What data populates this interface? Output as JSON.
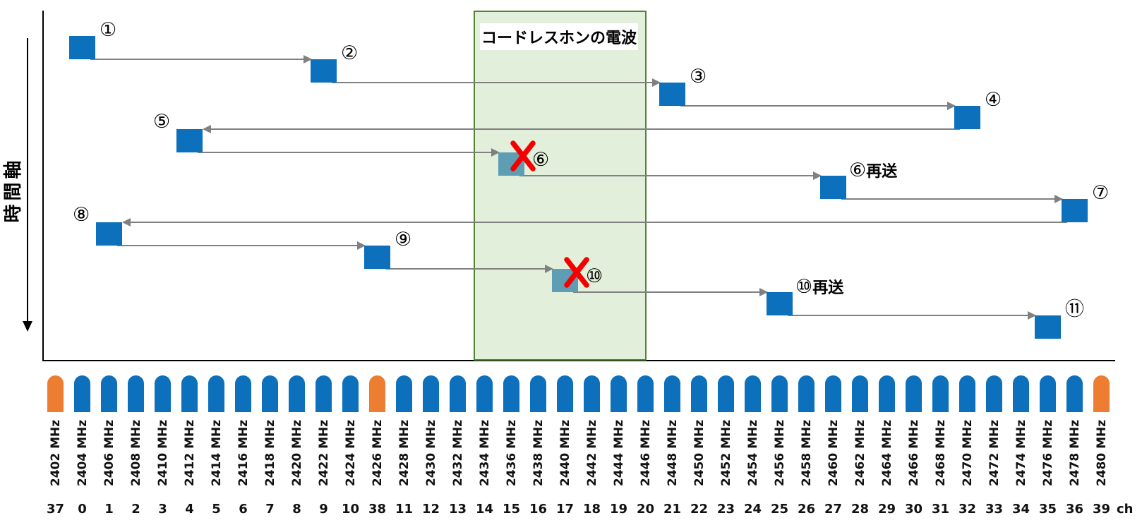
{
  "time_axis": {
    "label": "時間軸"
  },
  "interference_zone": {
    "label": "コードレスホンの電波"
  },
  "hops": [
    {
      "id": "1",
      "label": "①",
      "freq_mhz": 2404,
      "status": "ok",
      "label_side": "top-right"
    },
    {
      "id": "2",
      "label": "②",
      "freq_mhz": 2422,
      "status": "ok",
      "label_side": "top-right"
    },
    {
      "id": "3",
      "label": "③",
      "freq_mhz": 2448,
      "status": "ok",
      "label_side": "top-right"
    },
    {
      "id": "4",
      "label": "④",
      "freq_mhz": 2470,
      "status": "ok",
      "label_side": "top-right"
    },
    {
      "id": "5",
      "label": "⑤",
      "freq_mhz": 2412,
      "status": "ok",
      "label_side": "top-left"
    },
    {
      "id": "6",
      "label": "⑥",
      "freq_mhz": 2436,
      "status": "blocked",
      "label_side": "right"
    },
    {
      "id": "6-resend",
      "label": "⑥再送",
      "freq_mhz": 2460,
      "status": "resend",
      "label_side": "top-right"
    },
    {
      "id": "7",
      "label": "⑦",
      "freq_mhz": 2478,
      "status": "ok",
      "label_side": "top-right"
    },
    {
      "id": "8",
      "label": "⑧",
      "freq_mhz": 2406,
      "status": "ok",
      "label_side": "top-left"
    },
    {
      "id": "9",
      "label": "⑨",
      "freq_mhz": 2426,
      "status": "ok",
      "label_side": "top-right"
    },
    {
      "id": "10",
      "label": "⑩",
      "freq_mhz": 2440,
      "status": "blocked",
      "label_side": "right"
    },
    {
      "id": "10-resend",
      "label": "⑩再送",
      "freq_mhz": 2456,
      "status": "resend",
      "label_side": "top-right"
    },
    {
      "id": "11",
      "label": "⑪",
      "freq_mhz": 2476,
      "status": "ok",
      "label_side": "top-right"
    }
  ],
  "frequency_axis": {
    "unit_label": "ch",
    "channels": [
      {
        "freq_label": "2402 MHz",
        "ch": "37",
        "advertising": true
      },
      {
        "freq_label": "2404 MHz",
        "ch": "0",
        "advertising": false
      },
      {
        "freq_label": "2406 MHz",
        "ch": "1",
        "advertising": false
      },
      {
        "freq_label": "2408 MHz",
        "ch": "2",
        "advertising": false
      },
      {
        "freq_label": "2410 MHz",
        "ch": "3",
        "advertising": false
      },
      {
        "freq_label": "2412 MHz",
        "ch": "4",
        "advertising": false
      },
      {
        "freq_label": "2414 MHz",
        "ch": "5",
        "advertising": false
      },
      {
        "freq_label": "2416 MHz",
        "ch": "6",
        "advertising": false
      },
      {
        "freq_label": "2418 MHz",
        "ch": "7",
        "advertising": false
      },
      {
        "freq_label": "2420 MHz",
        "ch": "8",
        "advertising": false
      },
      {
        "freq_label": "2422 MHz",
        "ch": "9",
        "advertising": false
      },
      {
        "freq_label": "2424 MHz",
        "ch": "10",
        "advertising": false
      },
      {
        "freq_label": "2426 MHz",
        "ch": "38",
        "advertising": true
      },
      {
        "freq_label": "2428 MHz",
        "ch": "11",
        "advertising": false
      },
      {
        "freq_label": "2430 MHz",
        "ch": "12",
        "advertising": false
      },
      {
        "freq_label": "2432 MHz",
        "ch": "13",
        "advertising": false
      },
      {
        "freq_label": "2434 MHz",
        "ch": "14",
        "advertising": false
      },
      {
        "freq_label": "2436 MHz",
        "ch": "15",
        "advertising": false
      },
      {
        "freq_label": "2438 MHz",
        "ch": "16",
        "advertising": false
      },
      {
        "freq_label": "2440 MHz",
        "ch": "17",
        "advertising": false
      },
      {
        "freq_label": "2442 MHz",
        "ch": "18",
        "advertising": false
      },
      {
        "freq_label": "2444 MHz",
        "ch": "19",
        "advertising": false
      },
      {
        "freq_label": "2446 MHz",
        "ch": "20",
        "advertising": false
      },
      {
        "freq_label": "2448 MHz",
        "ch": "21",
        "advertising": false
      },
      {
        "freq_label": "2450 MHz",
        "ch": "22",
        "advertising": false
      },
      {
        "freq_label": "2452 MHz",
        "ch": "23",
        "advertising": false
      },
      {
        "freq_label": "2454 MHz",
        "ch": "24",
        "advertising": false
      },
      {
        "freq_label": "2456 MHz",
        "ch": "25",
        "advertising": false
      },
      {
        "freq_label": "2458 MHz",
        "ch": "26",
        "advertising": false
      },
      {
        "freq_label": "2460 MHz",
        "ch": "27",
        "advertising": false
      },
      {
        "freq_label": "2462 MHz",
        "ch": "28",
        "advertising": false
      },
      {
        "freq_label": "2464 MHz",
        "ch": "29",
        "advertising": false
      },
      {
        "freq_label": "2466 MHz",
        "ch": "30",
        "advertising": false
      },
      {
        "freq_label": "2468 MHz",
        "ch": "31",
        "advertising": false
      },
      {
        "freq_label": "2470 MHz",
        "ch": "32",
        "advertising": false
      },
      {
        "freq_label": "2472 MHz",
        "ch": "33",
        "advertising": false
      },
      {
        "freq_label": "2474 MHz",
        "ch": "34",
        "advertising": false
      },
      {
        "freq_label": "2476 MHz",
        "ch": "35",
        "advertising": false
      },
      {
        "freq_label": "2478 MHz",
        "ch": "36",
        "advertising": false
      },
      {
        "freq_label": "2480 MHz",
        "ch": "39",
        "advertising": true
      }
    ]
  },
  "colors": {
    "hop_blue": "#0C70BC",
    "blocked_teal": "#5F9DB4",
    "channel_blue": "#0C70BC",
    "advertising_orange": "#ED7D31",
    "interference_fill": "#E2EFDA",
    "interference_border": "#548235",
    "error_red": "#F40000",
    "arrow_gray": "#808080",
    "axis_black": "#000000"
  }
}
